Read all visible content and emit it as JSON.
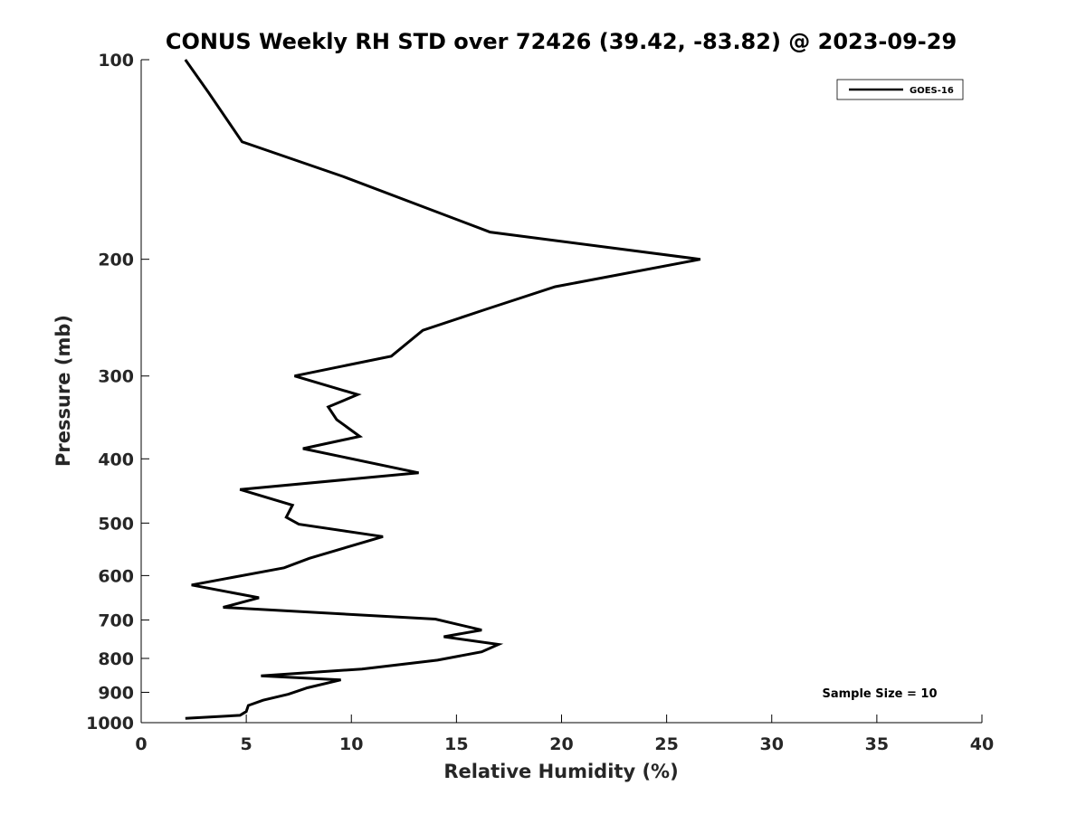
{
  "chart_data": {
    "type": "line",
    "title": "CONUS Weekly RH STD over 72426 (39.42, -83.82) @ 2023-09-29",
    "xlabel": "Relative Humidity (%)",
    "ylabel": "Pressure (mb)",
    "xlim": [
      0,
      40
    ],
    "ylim": [
      100,
      1000
    ],
    "y_scale": "log",
    "y_reversed": true,
    "x_ticks": [
      0,
      5,
      10,
      15,
      20,
      25,
      30,
      35,
      40
    ],
    "y_ticks": [
      100,
      200,
      300,
      400,
      500,
      600,
      700,
      800,
      900,
      1000
    ],
    "grid": false,
    "legend_position": "top-right",
    "annotation": "Sample Size = 10",
    "series": [
      {
        "name": "GOES-16",
        "color": "#000000",
        "x": [
          2.1,
          3.2,
          4.8,
          9.6,
          16.6,
          26.6,
          19.7,
          16.4,
          13.4,
          11.9,
          7.3,
          10.3,
          8.9,
          9.3,
          10.4,
          7.7,
          13.2,
          4.7,
          7.2,
          6.9,
          7.5,
          11.5,
          8.0,
          6.8,
          2.4,
          5.6,
          3.9,
          14.0,
          16.2,
          14.4,
          17.0,
          16.2,
          14.1,
          10.5,
          5.7,
          9.5,
          7.9,
          7.0,
          5.8,
          5.1,
          5.0,
          4.7,
          2.1
        ],
        "y": [
          100,
          112,
          133,
          150,
          182,
          200,
          220,
          238,
          256,
          280,
          300,
          320,
          334,
          349,
          370,
          386,
          420,
          445,
          470,
          490,
          502,
          524,
          565,
          584,
          620,
          648,
          670,
          698,
          725,
          742,
          762,
          782,
          805,
          830,
          850,
          862,
          886,
          906,
          925,
          942,
          962,
          975,
          985
        ]
      }
    ]
  }
}
